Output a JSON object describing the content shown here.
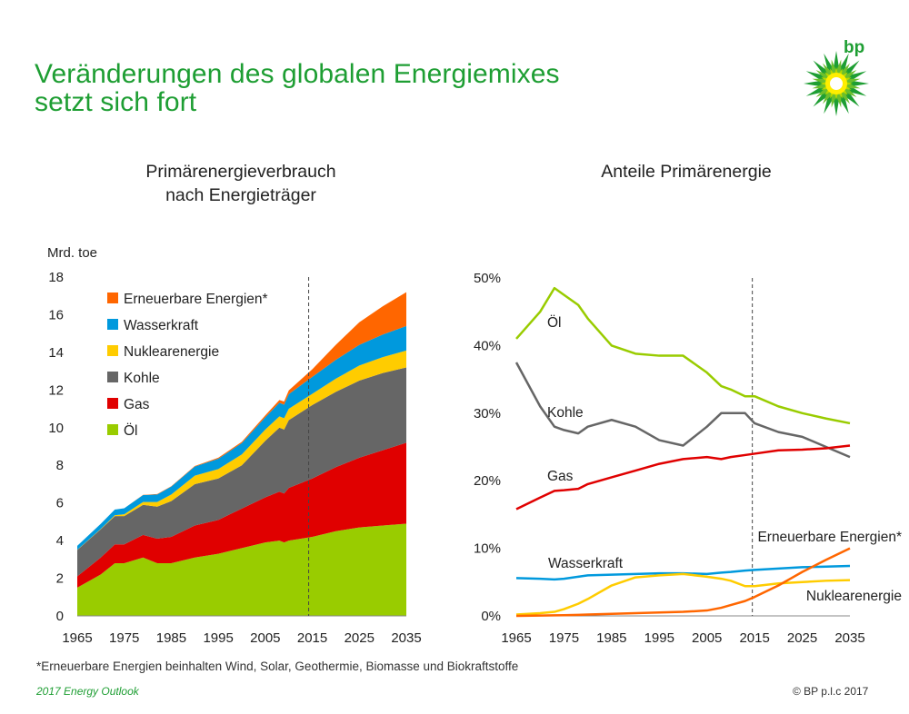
{
  "header": {
    "title_line1": "Veränderungen des globalen Energiemixes",
    "title_line2": "setzt sich fort",
    "logo_text": "bp"
  },
  "colors": {
    "accent": "#1e9e33",
    "oil": "#99cc00",
    "gas": "#e00000",
    "coal": "#666666",
    "nuclear": "#ffcc00",
    "hydro": "#0099dd",
    "renewables": "#ff6600"
  },
  "footnote": "*Erneuerbare Energien beinhalten Wind, Solar, Geothermie, Biomasse und Biokraftstoffe",
  "footer": {
    "left": "2017 Energy Outlook",
    "right": "© BP p.l.c 2017"
  },
  "chart_data": [
    {
      "type": "area",
      "title_line1": "Primärenergieverbrauch",
      "title_line2": "nach Energieträger",
      "ylabel": "Mrd. toe",
      "ylim": [
        0,
        18
      ],
      "yticks": [
        "0",
        "2",
        "4",
        "6",
        "8",
        "10",
        "12",
        "14",
        "16",
        "18"
      ],
      "xticks": [
        "1965",
        "1975",
        "1985",
        "1995",
        "2005",
        "2015",
        "2025",
        "2035"
      ],
      "xlim": [
        1965,
        2035
      ],
      "projection_start": 2015,
      "legend_position": "top-left",
      "x": [
        1965,
        1970,
        1973,
        1975,
        1979,
        1982,
        1985,
        1990,
        1995,
        2000,
        2005,
        2008,
        2009,
        2010,
        2015,
        2020,
        2025,
        2030,
        2035
      ],
      "series": [
        {
          "name": "Öl",
          "key": "oil",
          "values": [
            1.5,
            2.2,
            2.8,
            2.8,
            3.1,
            2.8,
            2.8,
            3.1,
            3.3,
            3.6,
            3.9,
            4.0,
            3.9,
            4.0,
            4.2,
            4.5,
            4.7,
            4.8,
            4.9
          ]
        },
        {
          "name": "Gas",
          "key": "gas",
          "values": [
            0.6,
            0.9,
            1.0,
            1.0,
            1.2,
            1.3,
            1.4,
            1.7,
            1.8,
            2.1,
            2.4,
            2.6,
            2.6,
            2.8,
            3.1,
            3.4,
            3.7,
            4.0,
            4.3
          ]
        },
        {
          "name": "Kohle",
          "key": "coal",
          "values": [
            1.4,
            1.5,
            1.5,
            1.5,
            1.6,
            1.7,
            1.9,
            2.2,
            2.2,
            2.3,
            3.0,
            3.4,
            3.4,
            3.6,
            3.9,
            4.0,
            4.1,
            4.1,
            4.0
          ]
        },
        {
          "name": "Nuklearenergie",
          "key": "nuclear",
          "values": [
            0.01,
            0.02,
            0.05,
            0.1,
            0.15,
            0.25,
            0.35,
            0.45,
            0.5,
            0.58,
            0.6,
            0.6,
            0.6,
            0.6,
            0.6,
            0.7,
            0.8,
            0.85,
            0.9
          ]
        },
        {
          "name": "Wasserkraft",
          "key": "hydro",
          "values": [
            0.21,
            0.27,
            0.3,
            0.32,
            0.37,
            0.4,
            0.42,
            0.48,
            0.55,
            0.6,
            0.65,
            0.72,
            0.72,
            0.78,
            0.9,
            1.0,
            1.1,
            1.2,
            1.3
          ]
        },
        {
          "name": "Erneuerbare Energien*",
          "key": "renewables",
          "values": [
            0.0,
            0.0,
            0.0,
            0.0,
            0.01,
            0.02,
            0.02,
            0.03,
            0.05,
            0.07,
            0.1,
            0.15,
            0.17,
            0.2,
            0.4,
            0.8,
            1.2,
            1.5,
            1.8
          ]
        }
      ]
    },
    {
      "type": "line",
      "title": "Anteile Primärenergie",
      "ylim": [
        0,
        50
      ],
      "yticks": [
        "0%",
        "10%",
        "20%",
        "30%",
        "40%",
        "50%"
      ],
      "xticks": [
        "1965",
        "1975",
        "1985",
        "1995",
        "2005",
        "2015",
        "2025",
        "2035"
      ],
      "xlim": [
        1965,
        2035
      ],
      "projection_start": 2013,
      "x": [
        1965,
        1970,
        1973,
        1975,
        1978,
        1980,
        1985,
        1990,
        1995,
        2000,
        2005,
        2008,
        2010,
        2013,
        2015,
        2020,
        2025,
        2030,
        2035
      ],
      "series": [
        {
          "name": "Öl",
          "key": "oil",
          "values": [
            41,
            45,
            48.5,
            47.5,
            46,
            44,
            40,
            38.8,
            38.5,
            38.5,
            36,
            34,
            33.5,
            32.5,
            32.5,
            31,
            30,
            29.2,
            28.5
          ]
        },
        {
          "name": "Kohle",
          "key": "coal",
          "values": [
            37.5,
            31,
            28,
            27.5,
            27,
            28,
            29,
            28,
            26,
            25.2,
            28,
            30,
            30,
            30,
            28.5,
            27.2,
            26.5,
            25,
            23.5
          ]
        },
        {
          "name": "Gas",
          "key": "gas",
          "values": [
            15.8,
            17.5,
            18.5,
            18.6,
            18.8,
            19.5,
            20.5,
            21.5,
            22.5,
            23.2,
            23.5,
            23.2,
            23.5,
            23.8,
            24,
            24.5,
            24.6,
            24.8,
            25.2
          ]
        },
        {
          "name": "Wasserkraft",
          "key": "hydro",
          "values": [
            5.6,
            5.5,
            5.4,
            5.5,
            5.8,
            6.0,
            6.1,
            6.2,
            6.3,
            6.3,
            6.2,
            6.4,
            6.5,
            6.7,
            6.8,
            7.0,
            7.2,
            7.3,
            7.4
          ]
        },
        {
          "name": "Nuklearenergie",
          "key": "nuclear",
          "values": [
            0.2,
            0.4,
            0.6,
            1.0,
            1.8,
            2.5,
            4.5,
            5.7,
            6.0,
            6.2,
            5.8,
            5.5,
            5.2,
            4.4,
            4.4,
            4.8,
            5.0,
            5.2,
            5.3
          ]
        },
        {
          "name": "Erneuerbare Energien*",
          "key": "renewables",
          "values": [
            0,
            0.05,
            0.08,
            0.1,
            0.15,
            0.2,
            0.3,
            0.4,
            0.5,
            0.6,
            0.8,
            1.2,
            1.6,
            2.2,
            2.8,
            4.5,
            6.5,
            8.3,
            10
          ]
        }
      ],
      "labels": [
        {
          "key": "oil",
          "text": "Öl"
        },
        {
          "key": "coal",
          "text": "Kohle"
        },
        {
          "key": "gas",
          "text": "Gas"
        },
        {
          "key": "hydro",
          "text": "Wasserkraft"
        },
        {
          "key": "renewables",
          "text": "Erneuerbare Energien*"
        },
        {
          "key": "nuclear",
          "text": "Nuklearenergie"
        }
      ]
    }
  ]
}
